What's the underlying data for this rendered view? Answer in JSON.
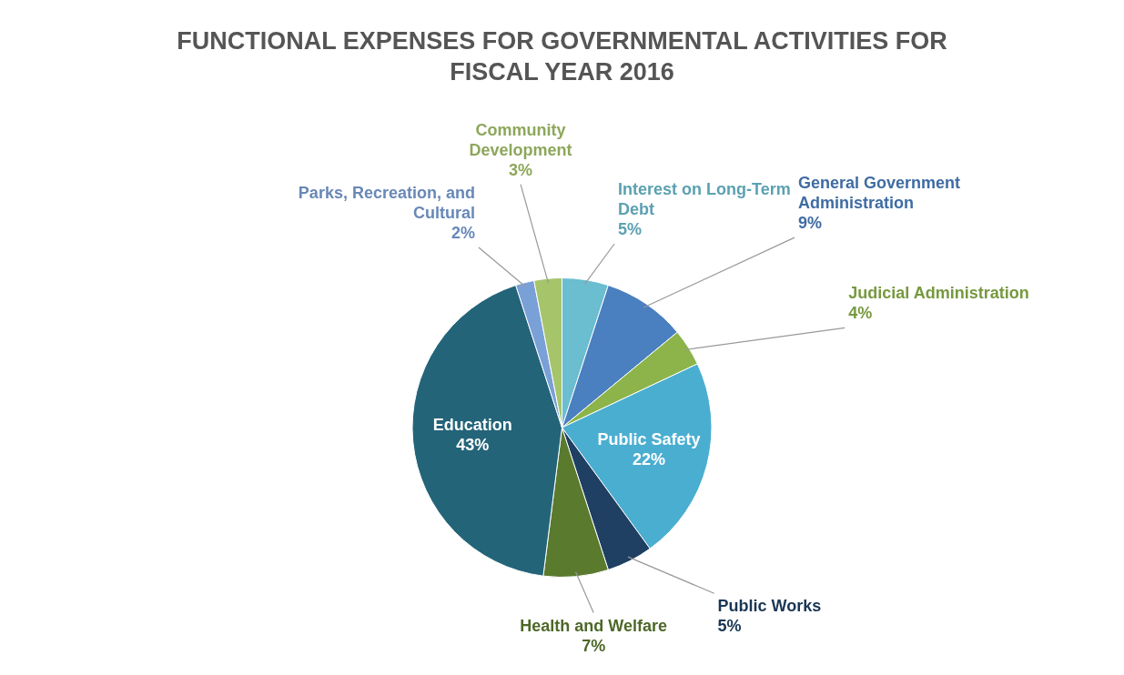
{
  "chart_data": {
    "type": "pie",
    "title": "FUNCTIONAL EXPENSES FOR GOVERNMENTAL ACTIVITIES FOR FISCAL YEAR 2016",
    "categories": [
      "Interest on Long-Term Debt",
      "General Government Administration",
      "Judicial Administration",
      "Public Safety",
      "Public Works",
      "Health and Welfare",
      "Education",
      "Parks, Recreation, and Cultural",
      "Community Development"
    ],
    "values": [
      5,
      9,
      4,
      22,
      5,
      7,
      43,
      2,
      3
    ],
    "value_labels": [
      "5%",
      "9%",
      "4%",
      "22%",
      "5%",
      "7%",
      "43%",
      "2%",
      "3%"
    ],
    "colors": [
      "#6bbdd0",
      "#4a7fc0",
      "#8cb44a",
      "#4aaed0",
      "#1f3f63",
      "#5a7a2e",
      "#236479",
      "#7aa0d8",
      "#a6c46a"
    ],
    "legend": false
  }
}
